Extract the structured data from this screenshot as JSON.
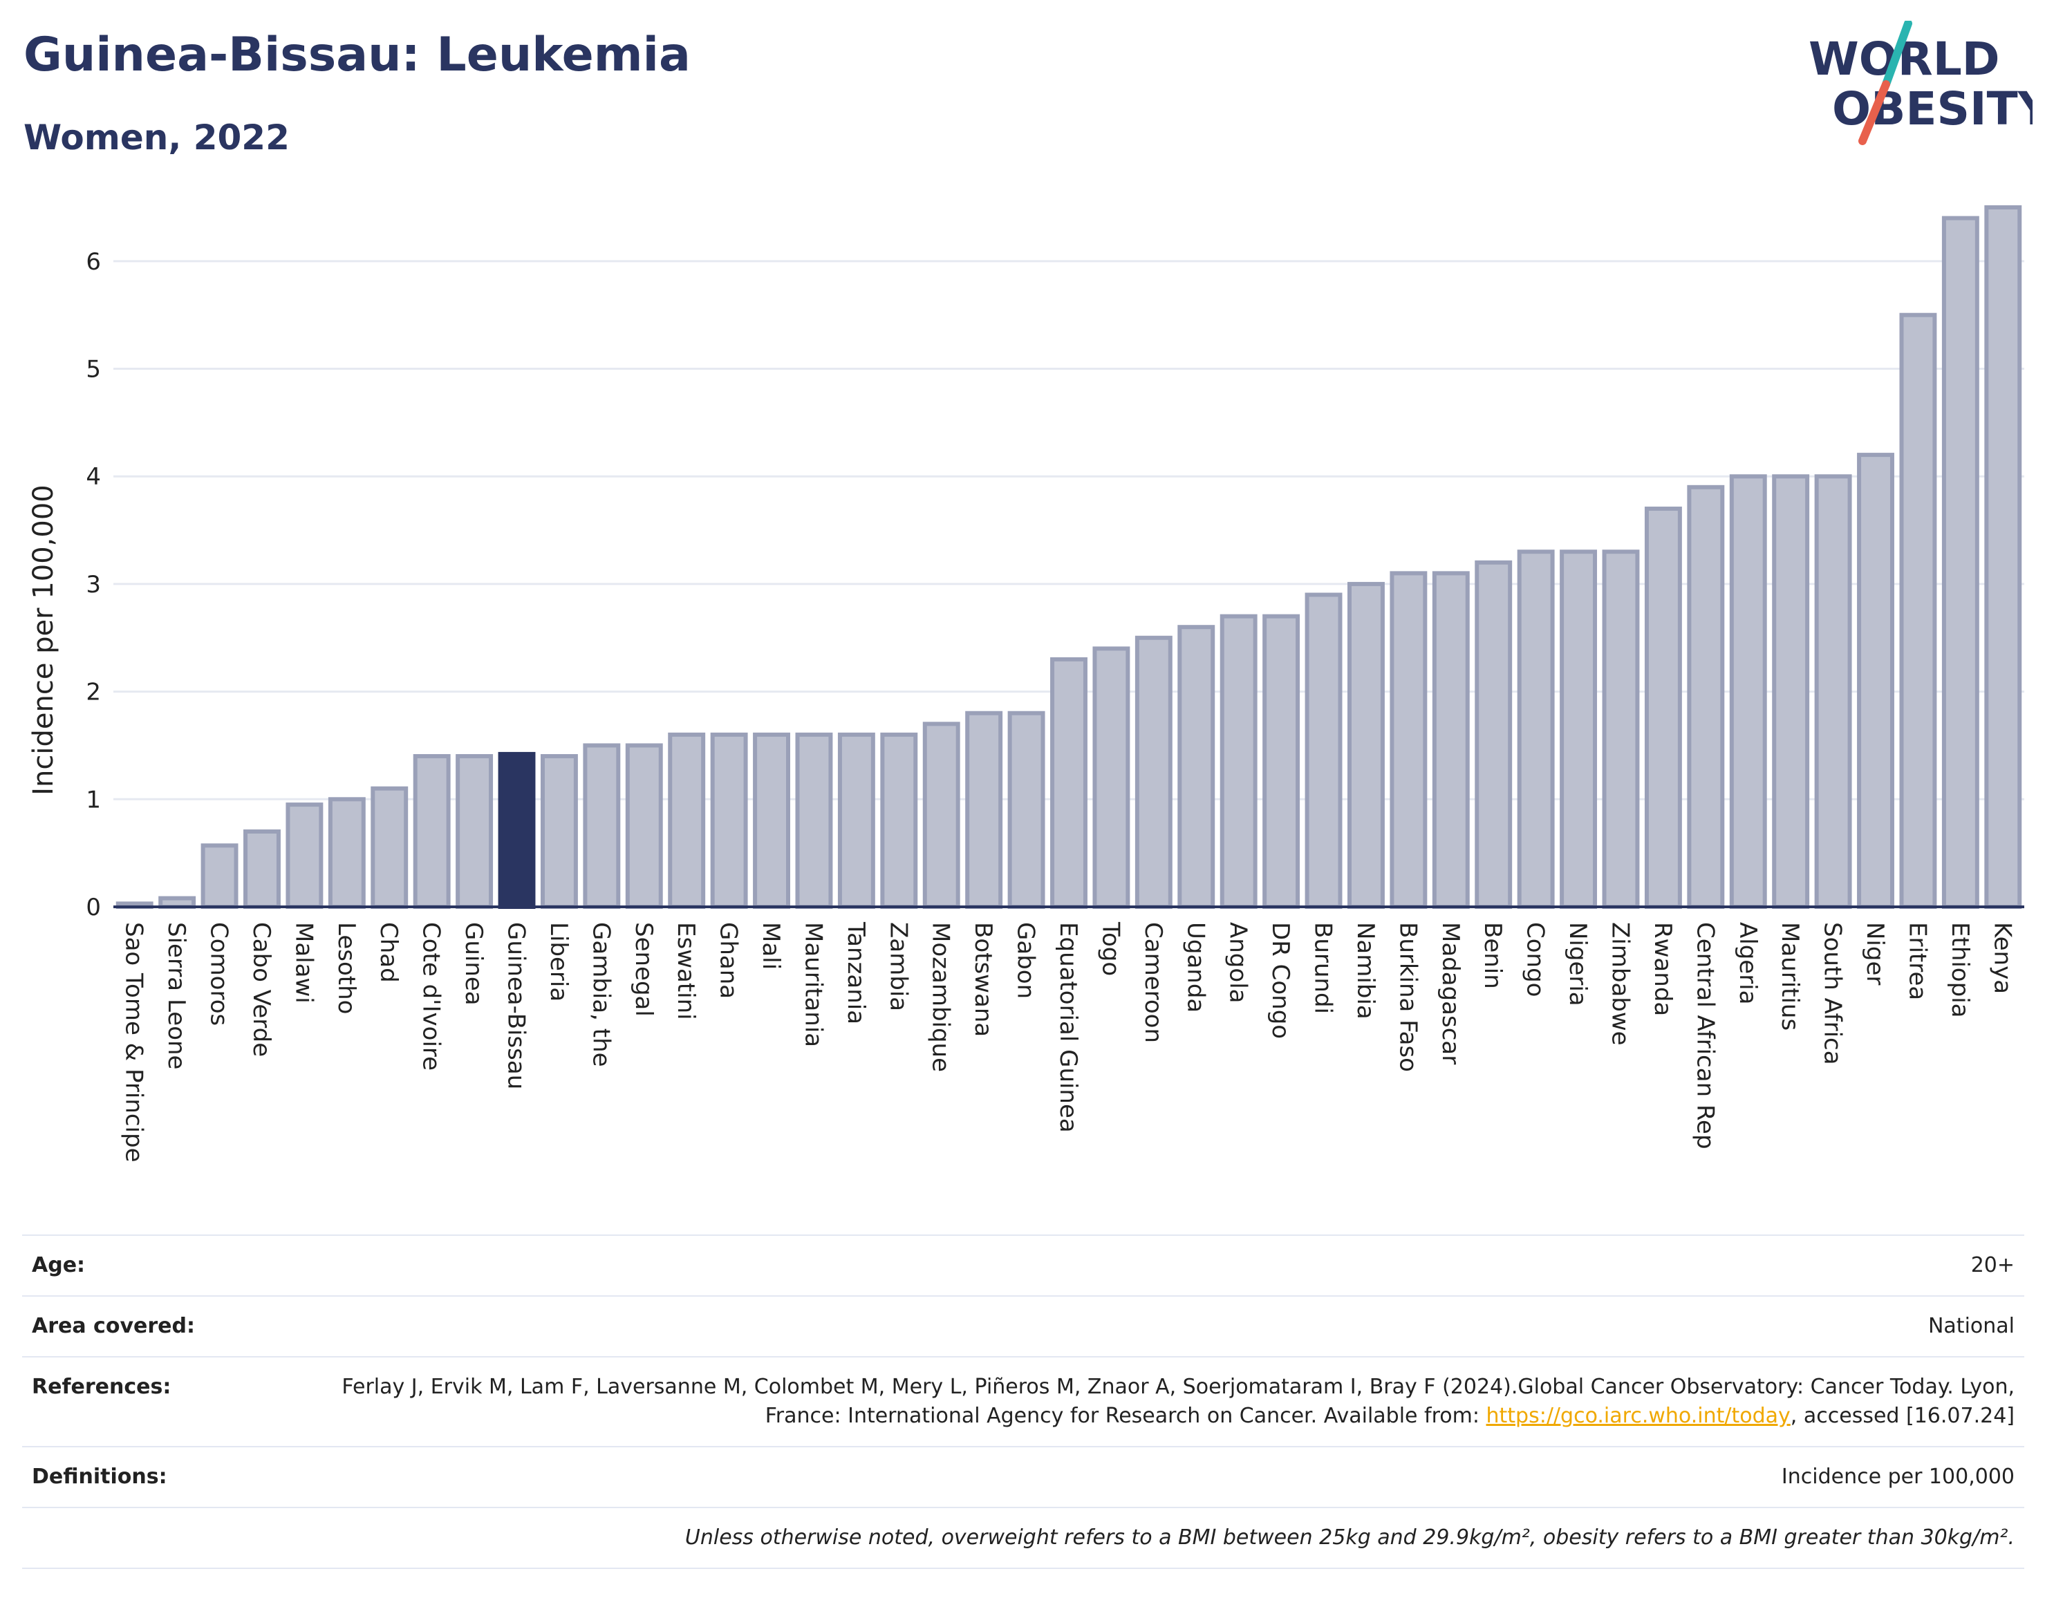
{
  "header": {
    "title": "Guinea-Bissau: Leukemia",
    "subtitle": "Women, 2022",
    "logo_line1": "WORLD",
    "logo_line2": "OBESITY"
  },
  "colors": {
    "bar": "#bcc0cf",
    "bar_border": "#9aa0b8",
    "highlight": "#2a3561",
    "grid": "#e6e9f1",
    "logo_teal": "#2ab4b0",
    "logo_red": "#e8604c"
  },
  "chart_data": {
    "type": "bar",
    "ylabel": "Incidence per 100,000",
    "ylim": [
      0,
      6.5
    ],
    "yticks": [
      0,
      1,
      2,
      3,
      4,
      5,
      6
    ],
    "grid": true,
    "highlight": "Guinea-Bissau",
    "categories": [
      "Sao Tome & Principe",
      "Sierra Leone",
      "Comoros",
      "Cabo Verde",
      "Malawi",
      "Lesotho",
      "Chad",
      "Cote d'Ivoire",
      "Guinea",
      "Guinea-Bissau",
      "Liberia",
      "Gambia, the",
      "Senegal",
      "Eswatini",
      "Ghana",
      "Mali",
      "Mauritania",
      "Tanzania",
      "Zambia",
      "Mozambique",
      "Botswana",
      "Gabon",
      "Equatorial Guinea",
      "Togo",
      "Cameroon",
      "Uganda",
      "Angola",
      "DR Congo",
      "Burundi",
      "Namibia",
      "Burkina Faso",
      "Madagascar",
      "Benin",
      "Congo",
      "Nigeria",
      "Zimbabwe",
      "Rwanda",
      "Central African Rep",
      "Algeria",
      "Mauritius",
      "South Africa",
      "Niger",
      "Eritrea",
      "Ethiopia",
      "Kenya"
    ],
    "values": [
      0.03,
      0.08,
      0.57,
      0.7,
      0.95,
      1.0,
      1.1,
      1.4,
      1.4,
      1.42,
      1.4,
      1.5,
      1.5,
      1.6,
      1.6,
      1.6,
      1.6,
      1.6,
      1.6,
      1.7,
      1.8,
      1.8,
      2.3,
      2.4,
      2.5,
      2.6,
      2.7,
      2.7,
      2.9,
      3.0,
      3.1,
      3.1,
      3.2,
      3.3,
      3.3,
      3.3,
      3.7,
      3.9,
      4.0,
      4.0,
      4.0,
      4.2,
      5.5,
      6.4,
      6.5
    ]
  },
  "info": {
    "age_label": "Age:",
    "age_value": "20+",
    "area_label": "Area covered:",
    "area_value": "National",
    "references_label": "References:",
    "references_text_1": "Ferlay J, Ervik M, Lam F, Laversanne M, Colombet M, Mery L, Piñeros M, Znaor A, Soerjomataram I, Bray F (2024).Global Cancer Observatory: Cancer Today. Lyon, France: International Agency for Research on Cancer. Available from: ",
    "references_link": "https://gco.iarc.who.int/today",
    "references_text_2": ", accessed [16.07.24]",
    "definitions_label": "Definitions:",
    "definitions_value": "Incidence per 100,000",
    "note": "Unless otherwise noted, overweight refers to a BMI between 25kg and 29.9kg/m², obesity refers to a BMI greater than 30kg/m²."
  }
}
